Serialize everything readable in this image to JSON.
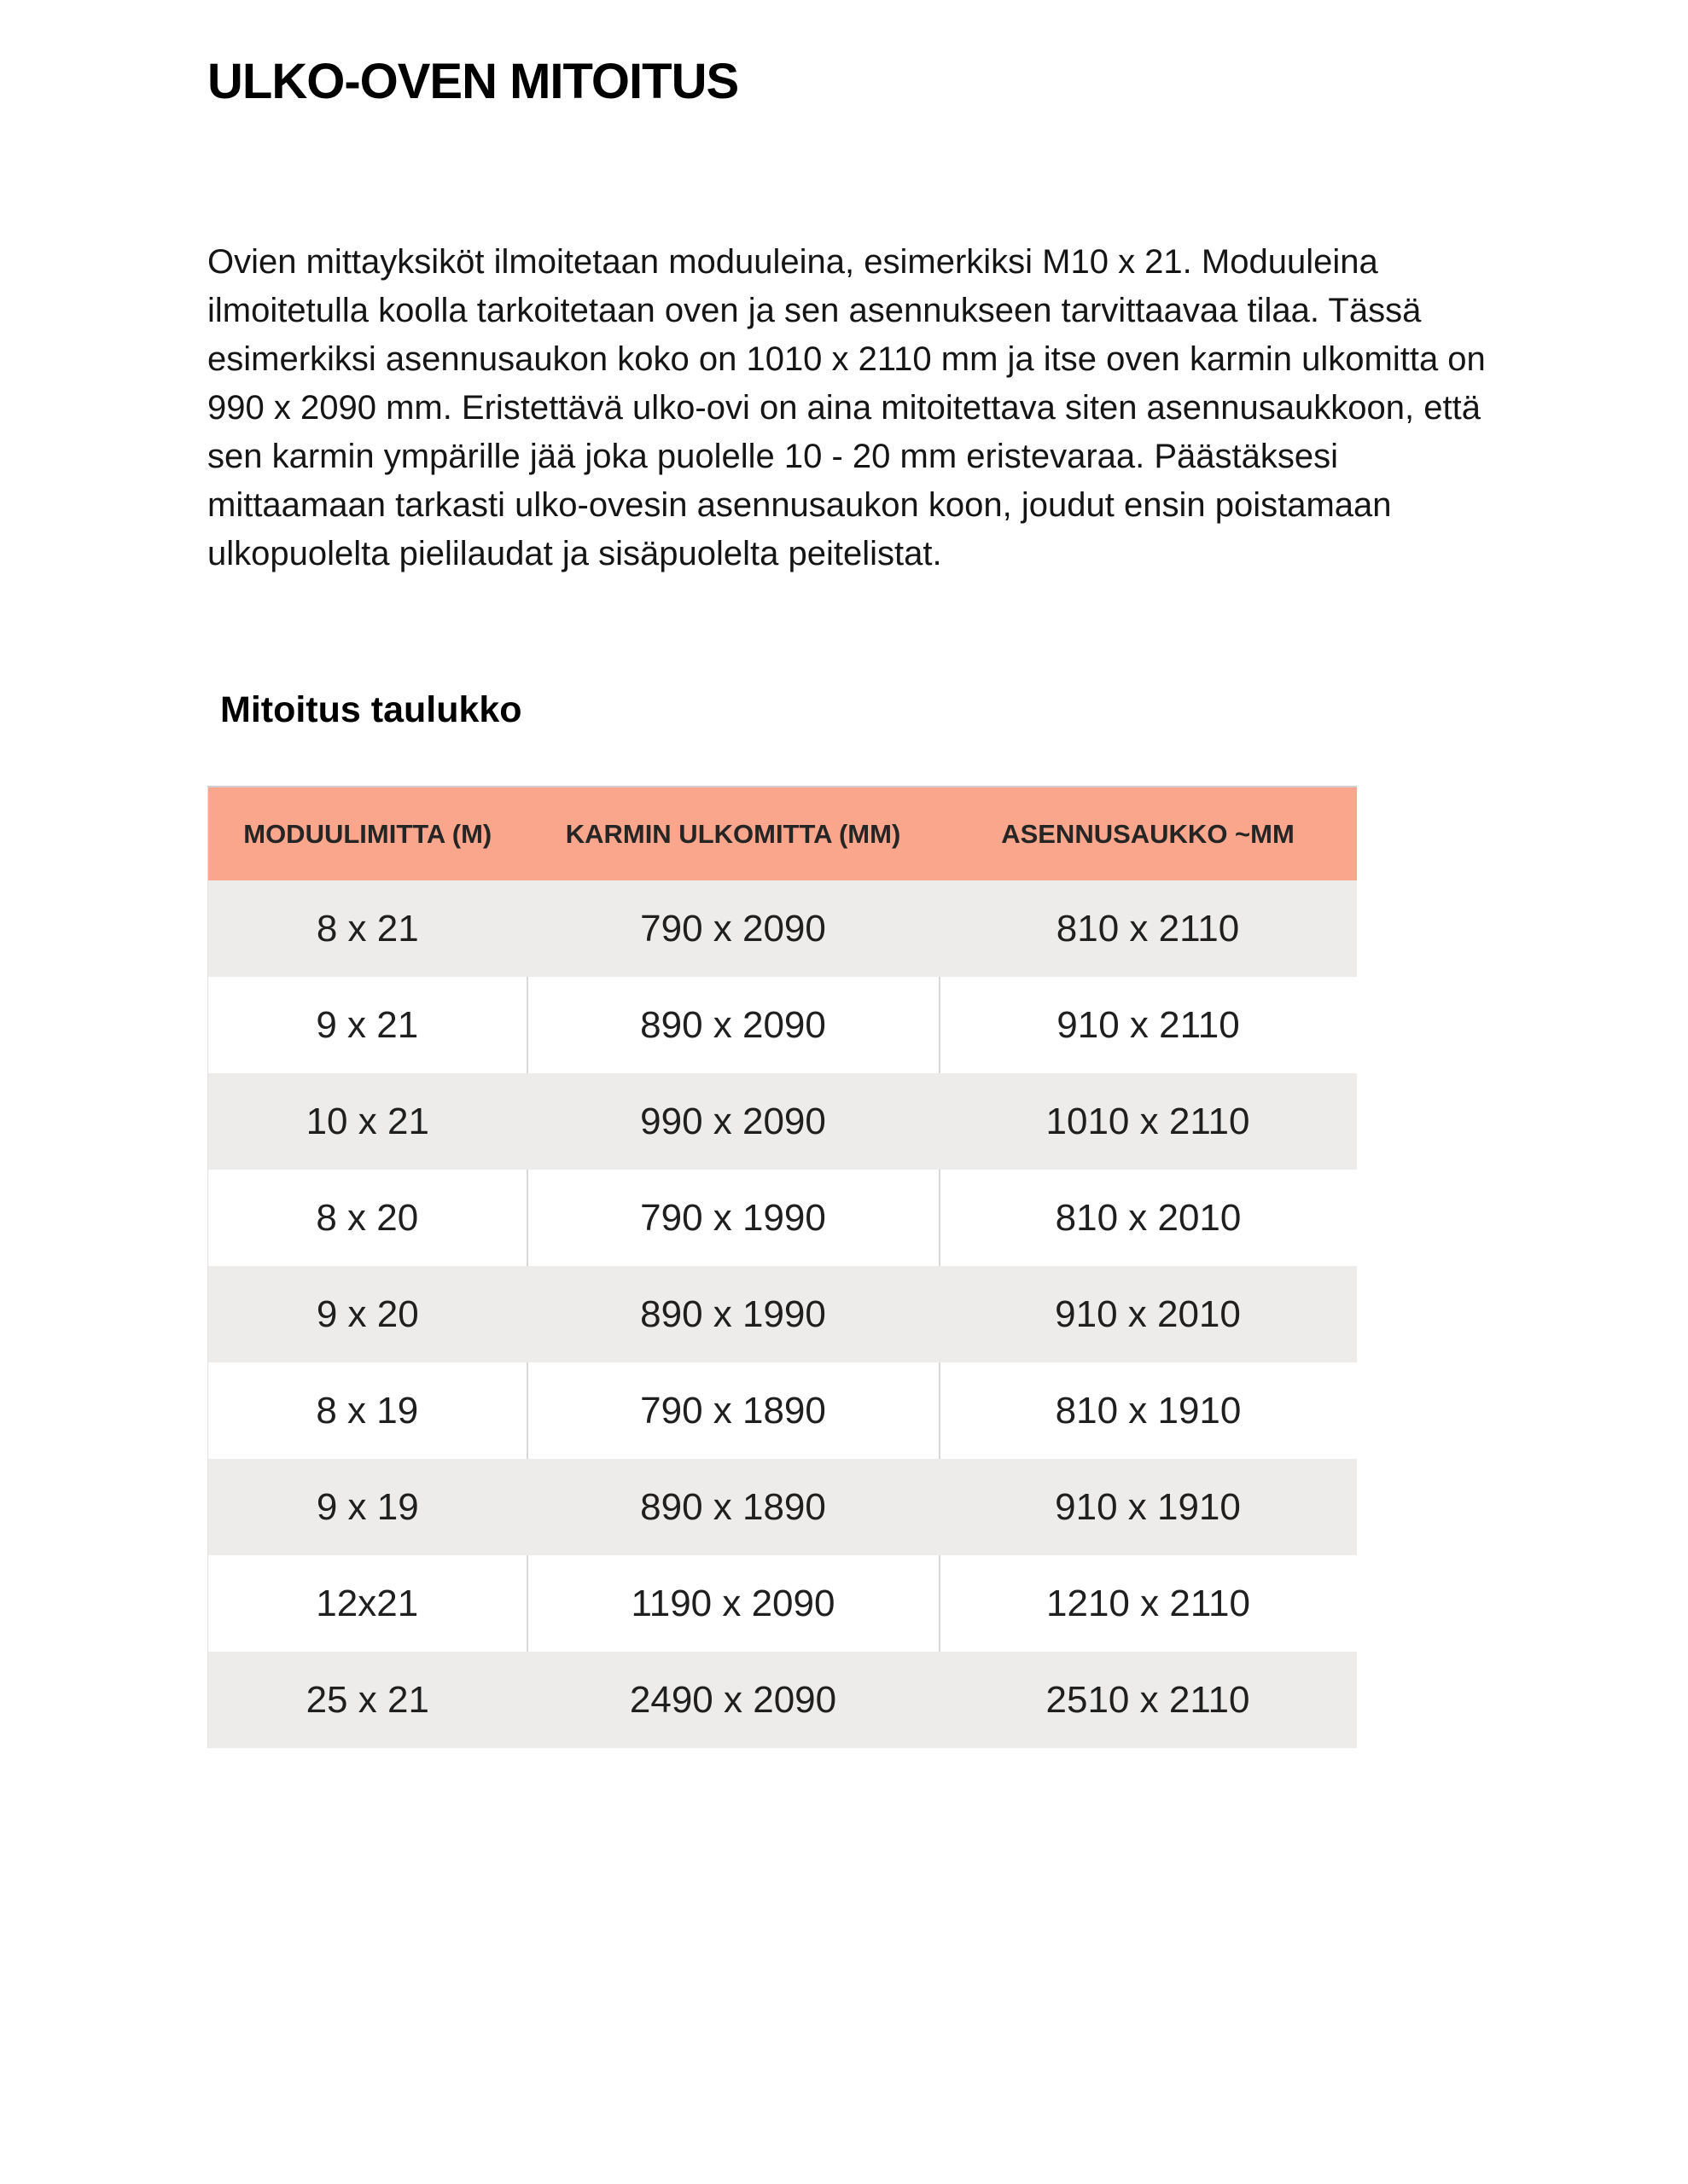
{
  "page": {
    "title": "ULKO-OVEN MITOITUS",
    "intro": "Ovien mittayksiköt ilmoitetaan moduuleina, esimerkiksi M10 x 21. Moduuleina ilmoitetulla koolla tarkoitetaan oven ja sen asennukseen tarvittaavaa tilaa. Tässä esimerkiksi asennusaukon koko on 1010 x 2110 mm ja itse oven karmin ulkomitta on 990 x 2090 mm. Eristettävä ulko-ovi on aina mitoitettava siten asennusaukkoon, että sen karmin ympärille jää joka puolelle 10 - 20 mm eristevaraa. Päästäksesi mittaamaan tarkasti ulko-ovesin asennusaukon koon, joudut ensin poistamaan ulkopuolelta pielilaudat ja sisäpuolelta peitelistat.",
    "table_heading": "Mitoitus taulukko"
  },
  "table": {
    "columns": [
      "MODUULIMITTA (M)",
      "KARMIN ULKOMITTA (MM)",
      "ASENNUSAUKKO ~MM"
    ],
    "rows": [
      [
        "8 x 21",
        "790 x 2090",
        "810 x 2110"
      ],
      [
        "9 x 21",
        "890 x 2090",
        "910 x 2110"
      ],
      [
        "10 x 21",
        "990 x 2090",
        "1010 x 2110"
      ],
      [
        "8 x 20",
        "790 x 1990",
        "810 x 2010"
      ],
      [
        "9 x 20",
        "890 x 1990",
        "910 x 2010"
      ],
      [
        "8 x 19",
        "790 x 1890",
        "810 x 1910"
      ],
      [
        "9 x 19",
        "890 x 1890",
        "910 x 1910"
      ],
      [
        "12x21",
        "1190 x 2090",
        "1210 x 2110"
      ],
      [
        "25 x 21",
        "2490 x 2090",
        "2510 x 2110"
      ]
    ],
    "colors": {
      "header_bg": "#f9a68c",
      "row_alt_bg": "#edeceb",
      "row_bg": "#ffffff",
      "divider": "#d8d8d8"
    }
  }
}
